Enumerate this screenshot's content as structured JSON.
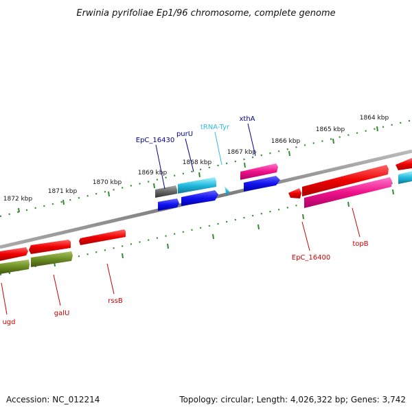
{
  "title": "Erwinia pyrifoliae Ep1/96 chromosome, complete genome",
  "footer": {
    "accession": "Accession: NC_012214",
    "summary": "Topology: circular; Length: 4,026,322 bp; Genes: 3,742"
  },
  "ruler": {
    "ticks": [
      {
        "label": "1872 kbp",
        "kbp": 1872
      },
      {
        "label": "1871 kbp",
        "kbp": 1871
      },
      {
        "label": "1870 kbp",
        "kbp": 1870
      },
      {
        "label": "1869 kbp",
        "kbp": 1869
      },
      {
        "label": "1868 kbp",
        "kbp": 1868
      },
      {
        "label": "1867 kbp",
        "kbp": 1867
      },
      {
        "label": "1866 kbp",
        "kbp": 1866
      },
      {
        "label": "1865 kbp",
        "kbp": 1865
      },
      {
        "label": "1864 kbp",
        "kbp": 1864
      }
    ]
  },
  "gene_labels": [
    {
      "text": "EpC_16430",
      "color": "#00008b"
    },
    {
      "text": "purU",
      "color": "#00008b"
    },
    {
      "text": "tRNA-Tyr",
      "color": "#33bbdd"
    },
    {
      "text": "xthA",
      "color": "#00008b"
    },
    {
      "text": "EpC_16400",
      "color": "#cc0000"
    },
    {
      "text": "topB",
      "color": "#cc0000"
    },
    {
      "text": "rssB",
      "color": "#cc0000"
    },
    {
      "text": "galU",
      "color": "#cc0000"
    },
    {
      "text": "ugd",
      "color": "#cc0000"
    }
  ],
  "colors": {
    "backbone": "#888888",
    "tick": "#2e8b2e",
    "gene_red": "#ee1111",
    "gene_pink": "#ee1188",
    "gene_blue": "#1111ee",
    "gene_cyan": "#22bbdd",
    "gene_olive": "#6b8e23",
    "gene_gray": "#666666"
  }
}
